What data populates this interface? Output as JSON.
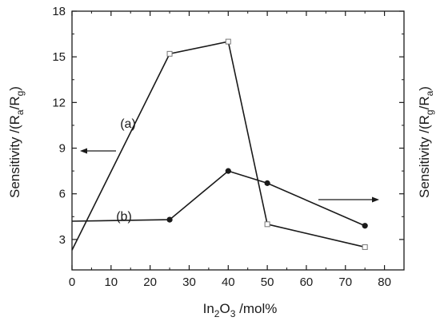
{
  "chart_data": {
    "type": "line",
    "title": "",
    "xlabel": {
      "main": "In",
      "sub": "2",
      "main2": "O",
      "sub2": "3",
      "rest": " /mol%"
    },
    "ylabel_left": {
      "main": "Sensitivity /(R",
      "sub1": "a",
      "mid": "/R",
      "sub2": "g",
      "end": ")"
    },
    "ylabel_right": {
      "main": "Sensitivity /(R",
      "sub1": "g",
      "mid": "/R",
      "sub2": "a",
      "end": ")"
    },
    "xlim": [
      0,
      85
    ],
    "ylim": [
      1,
      18
    ],
    "xticks": [
      0,
      10,
      20,
      30,
      40,
      50,
      60,
      70,
      80
    ],
    "yticks": [
      3,
      6,
      9,
      12,
      15,
      18
    ],
    "grid": false,
    "series": [
      {
        "name": "(a)",
        "axis": "left",
        "marker": "open-square",
        "points": [
          [
            0,
            2.3
          ],
          [
            25,
            15.2
          ],
          [
            40,
            16.0
          ],
          [
            50,
            4.0
          ],
          [
            75,
            2.5
          ]
        ]
      },
      {
        "name": "(b)",
        "axis": "right",
        "marker": "filled-circle",
        "points": [
          [
            0,
            4.2
          ],
          [
            25,
            4.3
          ],
          [
            40,
            7.5
          ],
          [
            50,
            6.7
          ],
          [
            75,
            3.9
          ]
        ]
      }
    ],
    "arrows": [
      {
        "series": "(a)",
        "direction": "left"
      },
      {
        "series": "(b)",
        "direction": "right"
      }
    ],
    "colors": {
      "line": "#1a1a1a",
      "axis": "#1a1a1a"
    }
  }
}
